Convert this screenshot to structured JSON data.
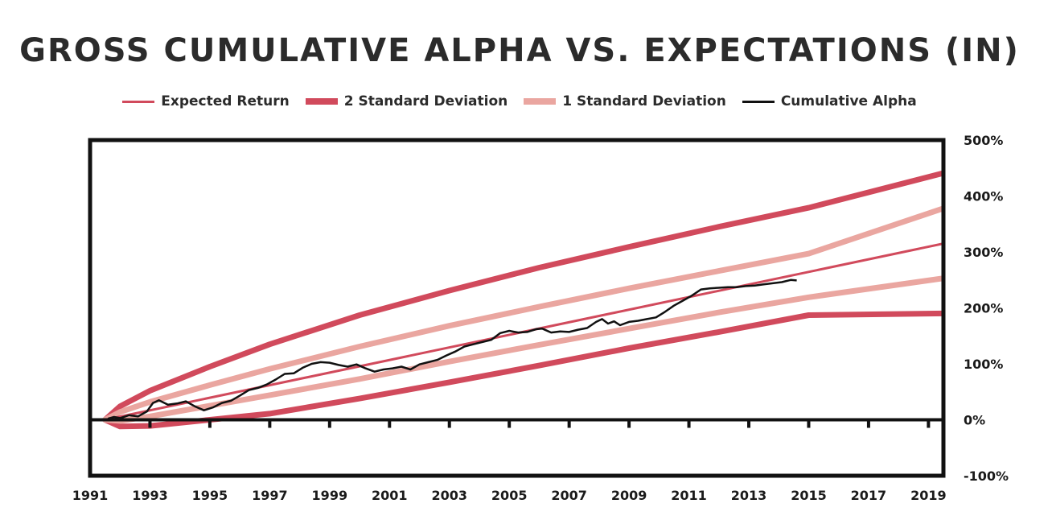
{
  "chart_data": {
    "type": "line",
    "title": "GROSS CUMULATIVE ALPHA VS. EXPECTATIONS (IN)",
    "xlabel": "",
    "ylabel": "",
    "xlim": [
      1991,
      2019.5
    ],
    "ylim": [
      -100,
      500
    ],
    "x_ticks": [
      1991,
      1993,
      1995,
      1997,
      1999,
      2001,
      2003,
      2005,
      2007,
      2009,
      2011,
      2013,
      2015,
      2017,
      2019
    ],
    "y_ticks": [
      -100,
      0,
      100,
      200,
      300,
      400,
      500
    ],
    "y_tick_suffix": "%",
    "grid": false,
    "legend_position": "top-center",
    "legend": [
      {
        "label": "Expected Return",
        "color": "#d14a5c",
        "style": "thin"
      },
      {
        "label": "2 Standard Deviation",
        "color": "#d14a5c",
        "style": "thick"
      },
      {
        "label": "1 Standard Deviation",
        "color": "#eaa6a0",
        "style": "thick"
      },
      {
        "label": "Cumulative Alpha",
        "color": "#111111",
        "style": "thin"
      }
    ],
    "series": [
      {
        "name": "Expected Return",
        "x": [
          1991.5,
          2019.5
        ],
        "y": [
          0,
          315
        ]
      },
      {
        "name": "2 Standard Deviation",
        "upper": {
          "x": [
            1991.5,
            1992,
            1993,
            1995,
            1997,
            2000,
            2003,
            2006,
            2009,
            2012,
            2015,
            2019.5
          ],
          "y": [
            0,
            24,
            52,
            95,
            135,
            187,
            231,
            272,
            309,
            345,
            379,
            441
          ]
        },
        "lower": {
          "x": [
            1991.5,
            1992,
            1993,
            1995,
            1997,
            2000,
            2003,
            2006,
            2009,
            2012,
            2015,
            2019.5
          ],
          "y": [
            0,
            -12,
            -11,
            0,
            11,
            38,
            67,
            97,
            128,
            157,
            187,
            190
          ]
        }
      },
      {
        "name": "1 Standard Deviation",
        "upper": {
          "x": [
            1991.5,
            1992,
            1993,
            1995,
            1997,
            2000,
            2003,
            2006,
            2009,
            2012,
            2015,
            2019.5
          ],
          "y": [
            0,
            14,
            32,
            62,
            91,
            131,
            168,
            202,
            235,
            266,
            297,
            378
          ]
        },
        "lower": {
          "x": [
            1991.5,
            1992,
            1993,
            1995,
            1997,
            2000,
            2003,
            2006,
            2009,
            2012,
            2015,
            2019.5
          ],
          "y": [
            0,
            -2,
            6,
            25,
            44,
            73,
            104,
            134,
            163,
            192,
            219,
            253
          ]
        }
      },
      {
        "name": "Cumulative Alpha",
        "x": [
          1991.6,
          1991.8,
          1992.0,
          1992.3,
          1992.6,
          1992.9,
          1993.1,
          1993.3,
          1993.6,
          1993.9,
          1994.2,
          1994.5,
          1994.8,
          1995.1,
          1995.4,
          1995.7,
          1996.0,
          1996.3,
          1996.6,
          1996.9,
          1997.2,
          1997.5,
          1997.8,
          1998.1,
          1998.4,
          1998.7,
          1999.0,
          1999.3,
          1999.6,
          1999.9,
          2000.2,
          2000.5,
          2000.8,
          2001.1,
          2001.4,
          2001.7,
          2002.0,
          2002.3,
          2002.6,
          2002.9,
          2003.2,
          2003.5,
          2003.8,
          2004.1,
          2004.4,
          2004.7,
          2005.0,
          2005.3,
          2005.6,
          2005.9,
          2006.1,
          2006.4,
          2006.7,
          2007.0,
          2007.3,
          2007.6,
          2007.9,
          2008.1,
          2008.3,
          2008.5,
          2008.7,
          2009.0,
          2009.3,
          2009.6,
          2009.9,
          2010.2,
          2010.5,
          2010.8,
          2011.1,
          2011.4,
          2011.7,
          2012.0,
          2012.3,
          2012.6,
          2012.9,
          2013.2,
          2013.5,
          2013.8,
          2014.1,
          2014.4,
          2014.6
        ],
        "y": [
          2,
          5,
          3,
          8,
          6,
          15,
          30,
          35,
          27,
          29,
          33,
          24,
          17,
          22,
          30,
          34,
          43,
          53,
          57,
          63,
          72,
          82,
          83,
          93,
          100,
          103,
          102,
          98,
          95,
          99,
          92,
          86,
          90,
          92,
          95,
          90,
          99,
          103,
          107,
          115,
          122,
          131,
          135,
          139,
          143,
          155,
          159,
          156,
          157,
          162,
          163,
          156,
          158,
          157,
          161,
          164,
          175,
          180,
          172,
          176,
          169,
          175,
          177,
          180,
          183,
          193,
          204,
          213,
          222,
          233,
          235,
          236,
          237,
          237,
          239,
          240,
          242,
          244,
          246,
          250,
          249
        ]
      }
    ]
  }
}
